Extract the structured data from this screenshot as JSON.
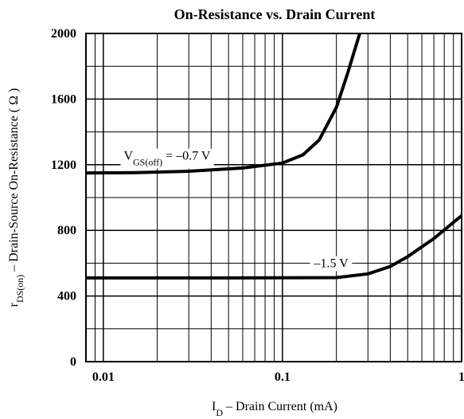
{
  "chart_data": {
    "type": "line",
    "title": "On-Resistance vs. Drain Current",
    "x_label": [
      {
        "text": "I"
      },
      {
        "text": "D",
        "sub": true
      },
      {
        "text": " – Drain Current (mA)"
      }
    ],
    "y_label": [
      {
        "text": "r"
      },
      {
        "text": "DS(on)",
        "sub": true
      },
      {
        "text": " – Drain-Source On-Resistance ( Ω )"
      }
    ],
    "xscale": "log",
    "xlim": [
      0.008,
      1
    ],
    "xticks": [
      0.01,
      0.1,
      1
    ],
    "xgrid": [
      0.009,
      0.02,
      0.03,
      0.04,
      0.05,
      0.06,
      0.07,
      0.08,
      0.09,
      0.2,
      0.3,
      0.4,
      0.5,
      0.6,
      0.7,
      0.8,
      0.9
    ],
    "ylim": [
      0,
      2000
    ],
    "yticks": [
      0,
      400,
      800,
      1200,
      1600,
      2000
    ],
    "ygrid": [
      200,
      600,
      1000,
      1400,
      1800
    ],
    "grid": true,
    "series": [
      {
        "color": "#000000",
        "x": [
          0.008,
          0.015,
          0.03,
          0.06,
          0.1,
          0.13,
          0.16,
          0.2,
          0.23,
          0.27
        ],
        "values": [
          1150,
          1152,
          1160,
          1180,
          1210,
          1260,
          1350,
          1550,
          1750,
          2000
        ]
      },
      {
        "color": "#000000",
        "x": [
          0.008,
          0.05,
          0.2,
          0.3,
          0.4,
          0.5,
          0.7,
          1
        ],
        "values": [
          510,
          510,
          512,
          535,
          580,
          640,
          750,
          890
        ]
      }
    ],
    "annotations": [
      {
        "parts": [
          {
            "text": "V"
          },
          {
            "text": "GS(off)",
            "sub": true
          },
          {
            "text": " = –0.7 V"
          }
        ]
      },
      {
        "parts": [
          {
            "text": "–1.5 V"
          }
        ]
      }
    ]
  }
}
